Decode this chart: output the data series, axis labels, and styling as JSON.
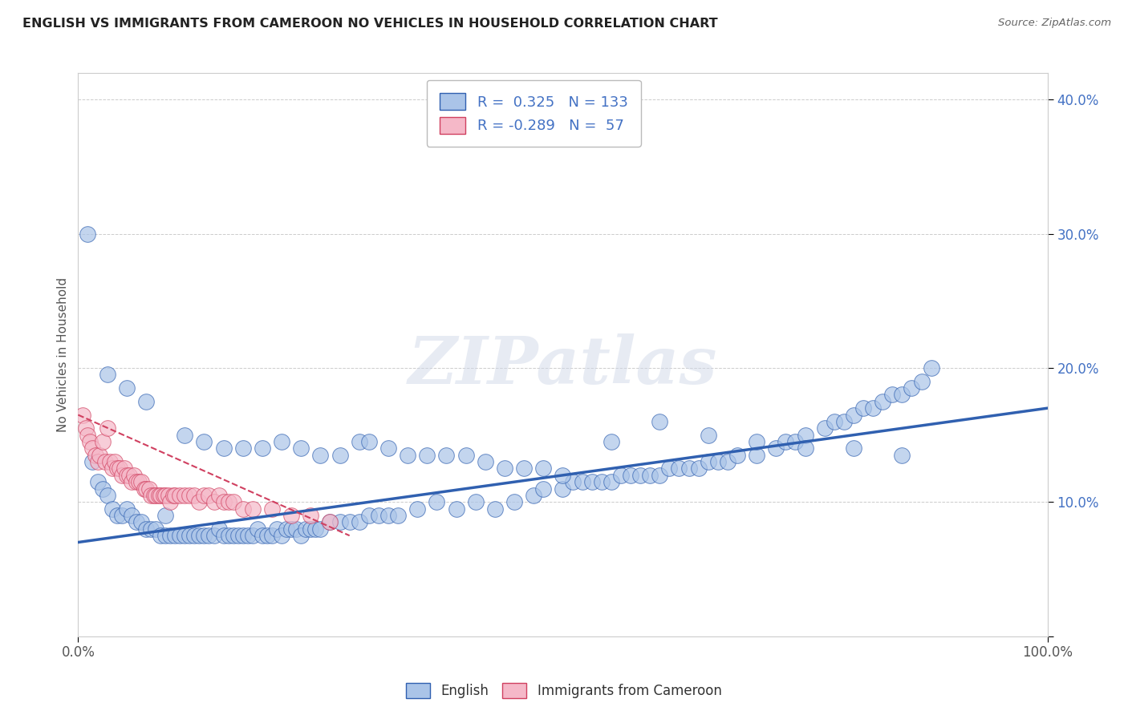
{
  "title": "ENGLISH VS IMMIGRANTS FROM CAMEROON NO VEHICLES IN HOUSEHOLD CORRELATION CHART",
  "source": "Source: ZipAtlas.com",
  "ylabel": "No Vehicles in Household",
  "r_english": 0.325,
  "n_english": 133,
  "r_cameroon": -0.289,
  "n_cameroon": 57,
  "english_color": "#aac4e8",
  "cameroon_color": "#f5b8c8",
  "english_line_color": "#3060b0",
  "cameroon_line_color": "#d04060",
  "english_scatter_x": [
    1.5,
    2.0,
    2.5,
    3.0,
    3.5,
    4.0,
    4.5,
    5.0,
    5.5,
    6.0,
    6.5,
    7.0,
    7.5,
    8.0,
    8.5,
    9.0,
    9.5,
    10.0,
    10.5,
    11.0,
    11.5,
    12.0,
    12.5,
    13.0,
    13.5,
    14.0,
    14.5,
    15.0,
    15.5,
    16.0,
    16.5,
    17.0,
    17.5,
    18.0,
    18.5,
    19.0,
    19.5,
    20.0,
    20.5,
    21.0,
    21.5,
    22.0,
    22.5,
    23.0,
    23.5,
    24.0,
    24.5,
    25.0,
    26.0,
    27.0,
    28.0,
    29.0,
    30.0,
    31.0,
    32.0,
    33.0,
    35.0,
    37.0,
    39.0,
    41.0,
    43.0,
    45.0,
    47.0,
    48.0,
    50.0,
    51.0,
    52.0,
    53.0,
    54.0,
    55.0,
    56.0,
    57.0,
    58.0,
    59.0,
    60.0,
    61.0,
    62.0,
    63.0,
    64.0,
    65.0,
    66.0,
    67.0,
    68.0,
    70.0,
    72.0,
    73.0,
    74.0,
    75.0,
    77.0,
    78.0,
    79.0,
    80.0,
    81.0,
    82.0,
    83.0,
    84.0,
    85.0,
    86.0,
    87.0,
    88.0,
    1.0,
    3.0,
    5.0,
    7.0,
    9.0,
    11.0,
    13.0,
    15.0,
    17.0,
    19.0,
    21.0,
    23.0,
    25.0,
    27.0,
    29.0,
    30.0,
    32.0,
    34.0,
    36.0,
    38.0,
    40.0,
    42.0,
    44.0,
    46.0,
    48.0,
    50.0,
    55.0,
    60.0,
    65.0,
    70.0,
    75.0,
    80.0,
    85.0
  ],
  "english_scatter_y": [
    13.0,
    11.5,
    11.0,
    10.5,
    9.5,
    9.0,
    9.0,
    9.5,
    9.0,
    8.5,
    8.5,
    8.0,
    8.0,
    8.0,
    7.5,
    7.5,
    7.5,
    7.5,
    7.5,
    7.5,
    7.5,
    7.5,
    7.5,
    7.5,
    7.5,
    7.5,
    8.0,
    7.5,
    7.5,
    7.5,
    7.5,
    7.5,
    7.5,
    7.5,
    8.0,
    7.5,
    7.5,
    7.5,
    8.0,
    7.5,
    8.0,
    8.0,
    8.0,
    7.5,
    8.0,
    8.0,
    8.0,
    8.0,
    8.5,
    8.5,
    8.5,
    8.5,
    9.0,
    9.0,
    9.0,
    9.0,
    9.5,
    10.0,
    9.5,
    10.0,
    9.5,
    10.0,
    10.5,
    11.0,
    11.0,
    11.5,
    11.5,
    11.5,
    11.5,
    11.5,
    12.0,
    12.0,
    12.0,
    12.0,
    12.0,
    12.5,
    12.5,
    12.5,
    12.5,
    13.0,
    13.0,
    13.0,
    13.5,
    13.5,
    14.0,
    14.5,
    14.5,
    15.0,
    15.5,
    16.0,
    16.0,
    16.5,
    17.0,
    17.0,
    17.5,
    18.0,
    18.0,
    18.5,
    19.0,
    20.0,
    30.0,
    19.5,
    18.5,
    17.5,
    9.0,
    15.0,
    14.5,
    14.0,
    14.0,
    14.0,
    14.5,
    14.0,
    13.5,
    13.5,
    14.5,
    14.5,
    14.0,
    13.5,
    13.5,
    13.5,
    13.5,
    13.0,
    12.5,
    12.5,
    12.5,
    12.0,
    14.5,
    16.0,
    15.0,
    14.5,
    14.0,
    14.0,
    13.5
  ],
  "cameroon_scatter_x": [
    0.5,
    0.8,
    1.0,
    1.2,
    1.5,
    1.8,
    2.0,
    2.2,
    2.5,
    2.8,
    3.0,
    3.3,
    3.5,
    3.8,
    4.0,
    4.3,
    4.5,
    4.8,
    5.0,
    5.3,
    5.5,
    5.8,
    6.0,
    6.3,
    6.5,
    6.8,
    7.0,
    7.3,
    7.5,
    7.8,
    8.0,
    8.3,
    8.5,
    8.8,
    9.0,
    9.3,
    9.5,
    9.8,
    10.0,
    10.5,
    11.0,
    11.5,
    12.0,
    12.5,
    13.0,
    13.5,
    14.0,
    14.5,
    15.0,
    15.5,
    16.0,
    17.0,
    18.0,
    20.0,
    22.0,
    24.0,
    26.0
  ],
  "cameroon_scatter_y": [
    16.5,
    15.5,
    15.0,
    14.5,
    14.0,
    13.5,
    13.0,
    13.5,
    14.5,
    13.0,
    15.5,
    13.0,
    12.5,
    13.0,
    12.5,
    12.5,
    12.0,
    12.5,
    12.0,
    12.0,
    11.5,
    12.0,
    11.5,
    11.5,
    11.5,
    11.0,
    11.0,
    11.0,
    10.5,
    10.5,
    10.5,
    10.5,
    10.5,
    10.5,
    10.5,
    10.5,
    10.0,
    10.5,
    10.5,
    10.5,
    10.5,
    10.5,
    10.5,
    10.0,
    10.5,
    10.5,
    10.0,
    10.5,
    10.0,
    10.0,
    10.0,
    9.5,
    9.5,
    9.5,
    9.0,
    9.0,
    8.5
  ],
  "english_line_x": [
    0,
    100
  ],
  "english_line_y": [
    7.0,
    17.0
  ],
  "cameroon_line_x": [
    0,
    28
  ],
  "cameroon_line_y": [
    16.5,
    7.5
  ],
  "watermark": "ZIPatlas",
  "background_color": "#ffffff",
  "grid_color": "#cccccc",
  "xlim": [
    0,
    100
  ],
  "ylim": [
    0,
    42
  ],
  "yticks": [
    0,
    10,
    20,
    30,
    40
  ],
  "ytick_labels": [
    "",
    "10.0%",
    "20.0%",
    "30.0%",
    "40.0%"
  ]
}
